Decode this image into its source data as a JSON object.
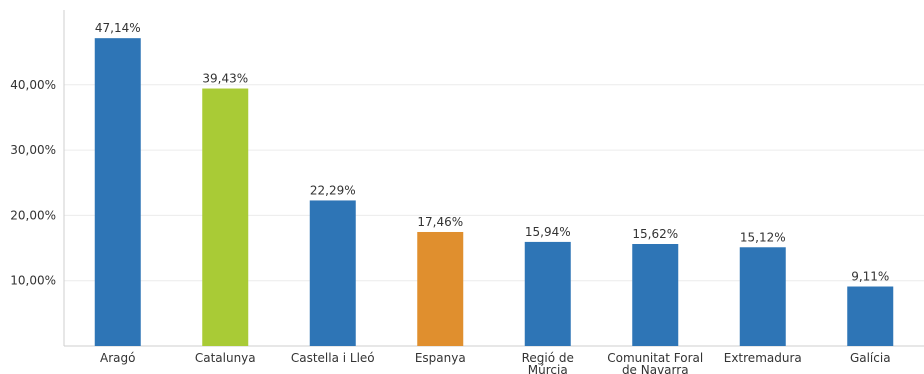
{
  "chart_data": {
    "type": "bar",
    "categories": [
      "Aragó",
      "Catalunya",
      "Castella i Lleó",
      "Espanya",
      "Regió de Múrcia",
      "Comunitat Foral de Navarra",
      "Extremadura",
      "Galícia"
    ],
    "category_label_lines": [
      [
        "Aragó"
      ],
      [
        "Catalunya"
      ],
      [
        "Castella i Lleó"
      ],
      [
        "Espanya"
      ],
      [
        "Regió de",
        "Múrcia"
      ],
      [
        "Comunitat Foral",
        "de Navarra"
      ],
      [
        "Extremadura"
      ],
      [
        "Galícia"
      ]
    ],
    "values": [
      47.14,
      39.43,
      22.29,
      17.46,
      15.94,
      15.62,
      15.12,
      9.11
    ],
    "value_labels": [
      "47,14%",
      "39,43%",
      "22,29%",
      "17,46%",
      "15,94%",
      "15,62%",
      "15,12%",
      "9,11%"
    ],
    "colors": [
      "#2e75b6",
      "#a9cb36",
      "#2e75b6",
      "#e08f2e",
      "#2e75b6",
      "#2e75b6",
      "#2e75b6",
      "#2e75b6"
    ],
    "yticks": [
      10,
      20,
      30,
      40
    ],
    "ytick_labels": [
      "10,00%",
      "20,00%",
      "30,00%",
      "40,00%"
    ],
    "ylim": [
      0,
      50
    ],
    "grid": true,
    "title": "",
    "xlabel": "",
    "ylabel": ""
  }
}
